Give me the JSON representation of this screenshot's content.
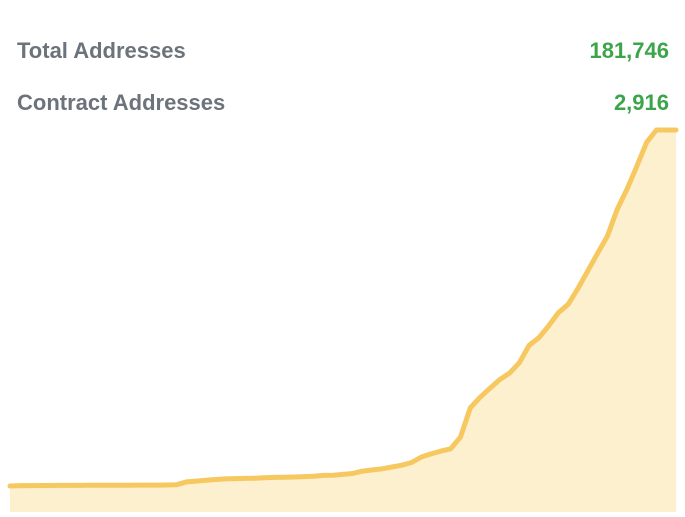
{
  "stats": {
    "total_label": "Total Addresses",
    "total_value": "181,746",
    "contract_label": "Contract Addresses",
    "contract_value": "2,916"
  },
  "colors": {
    "label": "#6c737a",
    "value": "#3ca54a",
    "line": "#f6c85f",
    "fill": "#fdf0cf"
  },
  "chart_data": {
    "type": "area",
    "x": [
      0,
      10,
      20,
      30,
      40,
      50,
      60,
      70,
      80,
      90,
      100,
      110,
      120,
      130,
      140,
      150,
      160,
      170,
      180,
      190,
      200,
      210,
      220,
      230,
      240,
      250,
      260,
      270,
      280,
      290,
      300,
      310,
      320,
      330,
      340,
      350,
      360,
      370,
      380,
      390,
      400,
      410,
      420,
      430,
      440,
      450,
      460,
      470,
      480,
      490,
      500,
      510,
      520,
      530,
      540,
      550,
      560,
      570,
      580,
      590,
      600,
      610,
      620,
      630,
      640,
      650,
      660,
      670,
      680
    ],
    "values": [
      0,
      200,
      210,
      250,
      280,
      300,
      310,
      330,
      340,
      360,
      380,
      400,
      420,
      440,
      460,
      480,
      500,
      600,
      2100,
      2500,
      2900,
      3300,
      3600,
      3800,
      3900,
      4000,
      4200,
      4400,
      4500,
      4600,
      4800,
      5000,
      5400,
      5500,
      5900,
      6400,
      7600,
      8200,
      8800,
      9700,
      10600,
      12000,
      14800,
      16400,
      17800,
      19000,
      25000,
      39900,
      45300,
      49900,
      54300,
      57600,
      62900,
      71800,
      75700,
      81800,
      88500,
      92800,
      101000,
      109900,
      118800,
      127600,
      141200,
      151500,
      163200,
      175400,
      181746,
      181746,
      181746
    ],
    "title": "",
    "xlabel": "",
    "ylabel": "",
    "ylim": [
      0,
      181746
    ],
    "grid": false,
    "legend": "none"
  }
}
